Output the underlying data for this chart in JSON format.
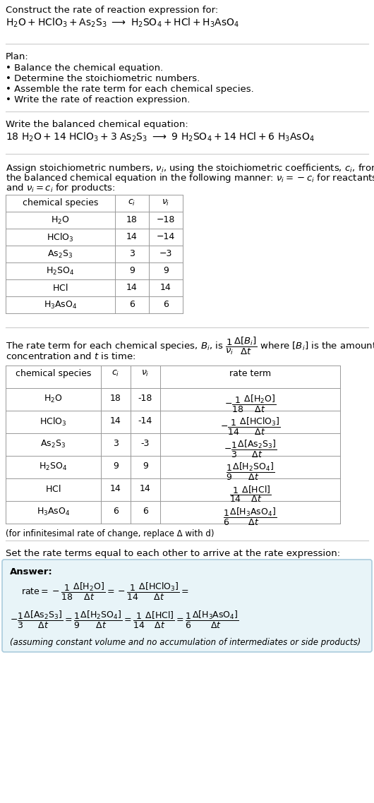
{
  "title_line1": "Construct the rate of reaction expression for:",
  "plan_header": "Plan:",
  "plan_items": [
    "• Balance the chemical equation.",
    "• Determine the stoichiometric numbers.",
    "• Assemble the rate term for each chemical species.",
    "• Write the rate of reaction expression."
  ],
  "balanced_header": "Write the balanced chemical equation:",
  "table1_species": [
    "H₂O",
    "HClO₃",
    "As₂S₃",
    "H₂SO₄",
    "HCl",
    "H₃AsO₄"
  ],
  "table1_ci": [
    "18",
    "14",
    "3",
    "9",
    "14",
    "6"
  ],
  "table1_ni": [
    "−18",
    "−14",
    "−3",
    "9",
    "14",
    "6"
  ],
  "infinitesimal_note": "(for infinitesimal rate of change, replace Δ with d)",
  "set_equal_text": "Set the rate terms equal to each other to arrive at the rate expression:",
  "answer_label": "Answer:",
  "answer_note": "(assuming constant volume and no accumulation of intermediates or side products)",
  "bg_color": "#ffffff",
  "answer_box_color": "#e8f4f8",
  "answer_box_border": "#aaccdd",
  "table_border_color": "#999999",
  "hline_color": "#cccccc",
  "fs": 9.5,
  "fs_small": 8.5,
  "fs_table": 9.0
}
